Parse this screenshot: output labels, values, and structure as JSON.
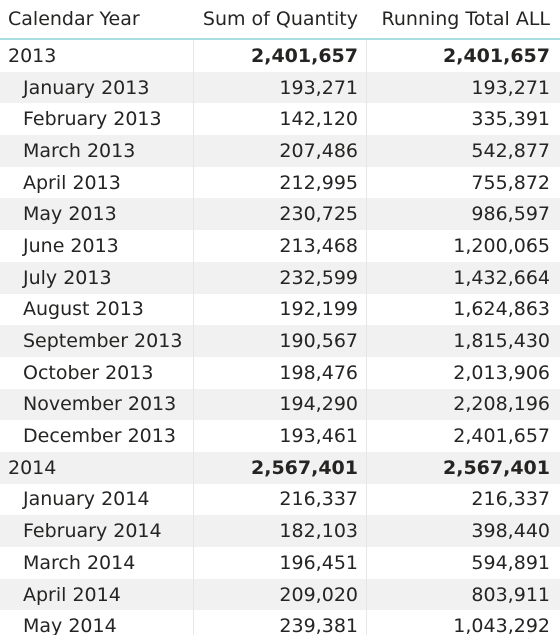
{
  "table": {
    "headers": [
      "Calendar Year",
      "Sum of Quantity",
      "Running Total ALL"
    ],
    "rows": [
      {
        "label": "2013",
        "qty": "2,401,657",
        "running": "2,401,657",
        "level": "year"
      },
      {
        "label": "January 2013",
        "qty": "193,271",
        "running": "193,271",
        "level": "month"
      },
      {
        "label": "February 2013",
        "qty": "142,120",
        "running": "335,391",
        "level": "month"
      },
      {
        "label": "March 2013",
        "qty": "207,486",
        "running": "542,877",
        "level": "month"
      },
      {
        "label": "April 2013",
        "qty": "212,995",
        "running": "755,872",
        "level": "month"
      },
      {
        "label": "May 2013",
        "qty": "230,725",
        "running": "986,597",
        "level": "month"
      },
      {
        "label": "June 2013",
        "qty": "213,468",
        "running": "1,200,065",
        "level": "month"
      },
      {
        "label": "July 2013",
        "qty": "232,599",
        "running": "1,432,664",
        "level": "month"
      },
      {
        "label": "August 2013",
        "qty": "192,199",
        "running": "1,624,863",
        "level": "month"
      },
      {
        "label": "September 2013",
        "qty": "190,567",
        "running": "1,815,430",
        "level": "month"
      },
      {
        "label": "October 2013",
        "qty": "198,476",
        "running": "2,013,906",
        "level": "month"
      },
      {
        "label": "November 2013",
        "qty": "194,290",
        "running": "2,208,196",
        "level": "month"
      },
      {
        "label": "December 2013",
        "qty": "193,461",
        "running": "2,401,657",
        "level": "month"
      },
      {
        "label": "2014",
        "qty": "2,567,401",
        "running": "2,567,401",
        "level": "year"
      },
      {
        "label": "January 2014",
        "qty": "216,337",
        "running": "216,337",
        "level": "month"
      },
      {
        "label": "February 2014",
        "qty": "182,103",
        "running": "398,440",
        "level": "month"
      },
      {
        "label": "March 2014",
        "qty": "196,451",
        "running": "594,891",
        "level": "month"
      },
      {
        "label": "April 2014",
        "qty": "209,020",
        "running": "803,911",
        "level": "month"
      },
      {
        "label": "May 2014",
        "qty": "239,381",
        "running": "1,043,292",
        "level": "month"
      }
    ]
  }
}
